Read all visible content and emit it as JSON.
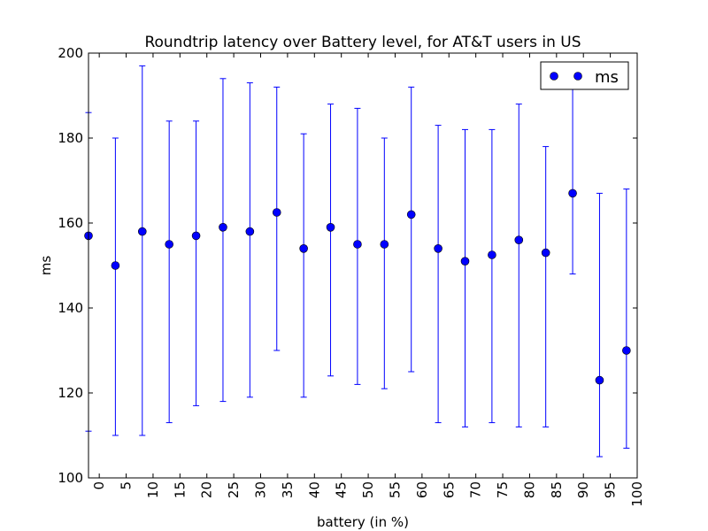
{
  "chart_data": {
    "type": "scatter",
    "title": "Roundtrip latency over Battery level, for AT&T users in US",
    "xlabel": "battery (in %)",
    "ylabel": "ms",
    "xlim": [
      -2,
      100
    ],
    "ylim": [
      100,
      200
    ],
    "x_ticks": [
      "0",
      "5",
      "10",
      "15",
      "20",
      "25",
      "30",
      "35",
      "40",
      "45",
      "50",
      "55",
      "60",
      "65",
      "70",
      "75",
      "80",
      "85",
      "90",
      "95",
      "100"
    ],
    "y_ticks": [
      "100",
      "120",
      "140",
      "160",
      "180",
      "200"
    ],
    "legend": {
      "position": "top-right"
    },
    "series": [
      {
        "name": "ms",
        "color": "#0000ff",
        "points": [
          {
            "x": -2,
            "y": 157,
            "low": 111,
            "high": 186
          },
          {
            "x": 3,
            "y": 150,
            "low": 110,
            "high": 180
          },
          {
            "x": 8,
            "y": 158,
            "low": 110,
            "high": 197
          },
          {
            "x": 13,
            "y": 155,
            "low": 113,
            "high": 184
          },
          {
            "x": 18,
            "y": 157,
            "low": 117,
            "high": 184
          },
          {
            "x": 23,
            "y": 159,
            "low": 118,
            "high": 194
          },
          {
            "x": 28,
            "y": 158,
            "low": 119,
            "high": 193
          },
          {
            "x": 33,
            "y": 162.5,
            "low": 130,
            "high": 192
          },
          {
            "x": 38,
            "y": 154,
            "low": 119,
            "high": 181
          },
          {
            "x": 43,
            "y": 159,
            "low": 124,
            "high": 188
          },
          {
            "x": 48,
            "y": 155,
            "low": 122,
            "high": 187
          },
          {
            "x": 53,
            "y": 155,
            "low": 121,
            "high": 180
          },
          {
            "x": 58,
            "y": 162,
            "low": 125,
            "high": 192
          },
          {
            "x": 63,
            "y": 154,
            "low": 113,
            "high": 183
          },
          {
            "x": 68,
            "y": 151,
            "low": 112,
            "high": 182
          },
          {
            "x": 73,
            "y": 152.5,
            "low": 113,
            "high": 182
          },
          {
            "x": 78,
            "y": 156,
            "low": 112,
            "high": 188
          },
          {
            "x": 83,
            "y": 153,
            "low": 112,
            "high": 178
          },
          {
            "x": 88,
            "y": 167,
            "low": 148,
            "high": 192
          },
          {
            "x": 93,
            "y": 123,
            "low": 105,
            "high": 167
          },
          {
            "x": 98,
            "y": 130,
            "low": 107,
            "high": 168
          }
        ]
      }
    ]
  }
}
